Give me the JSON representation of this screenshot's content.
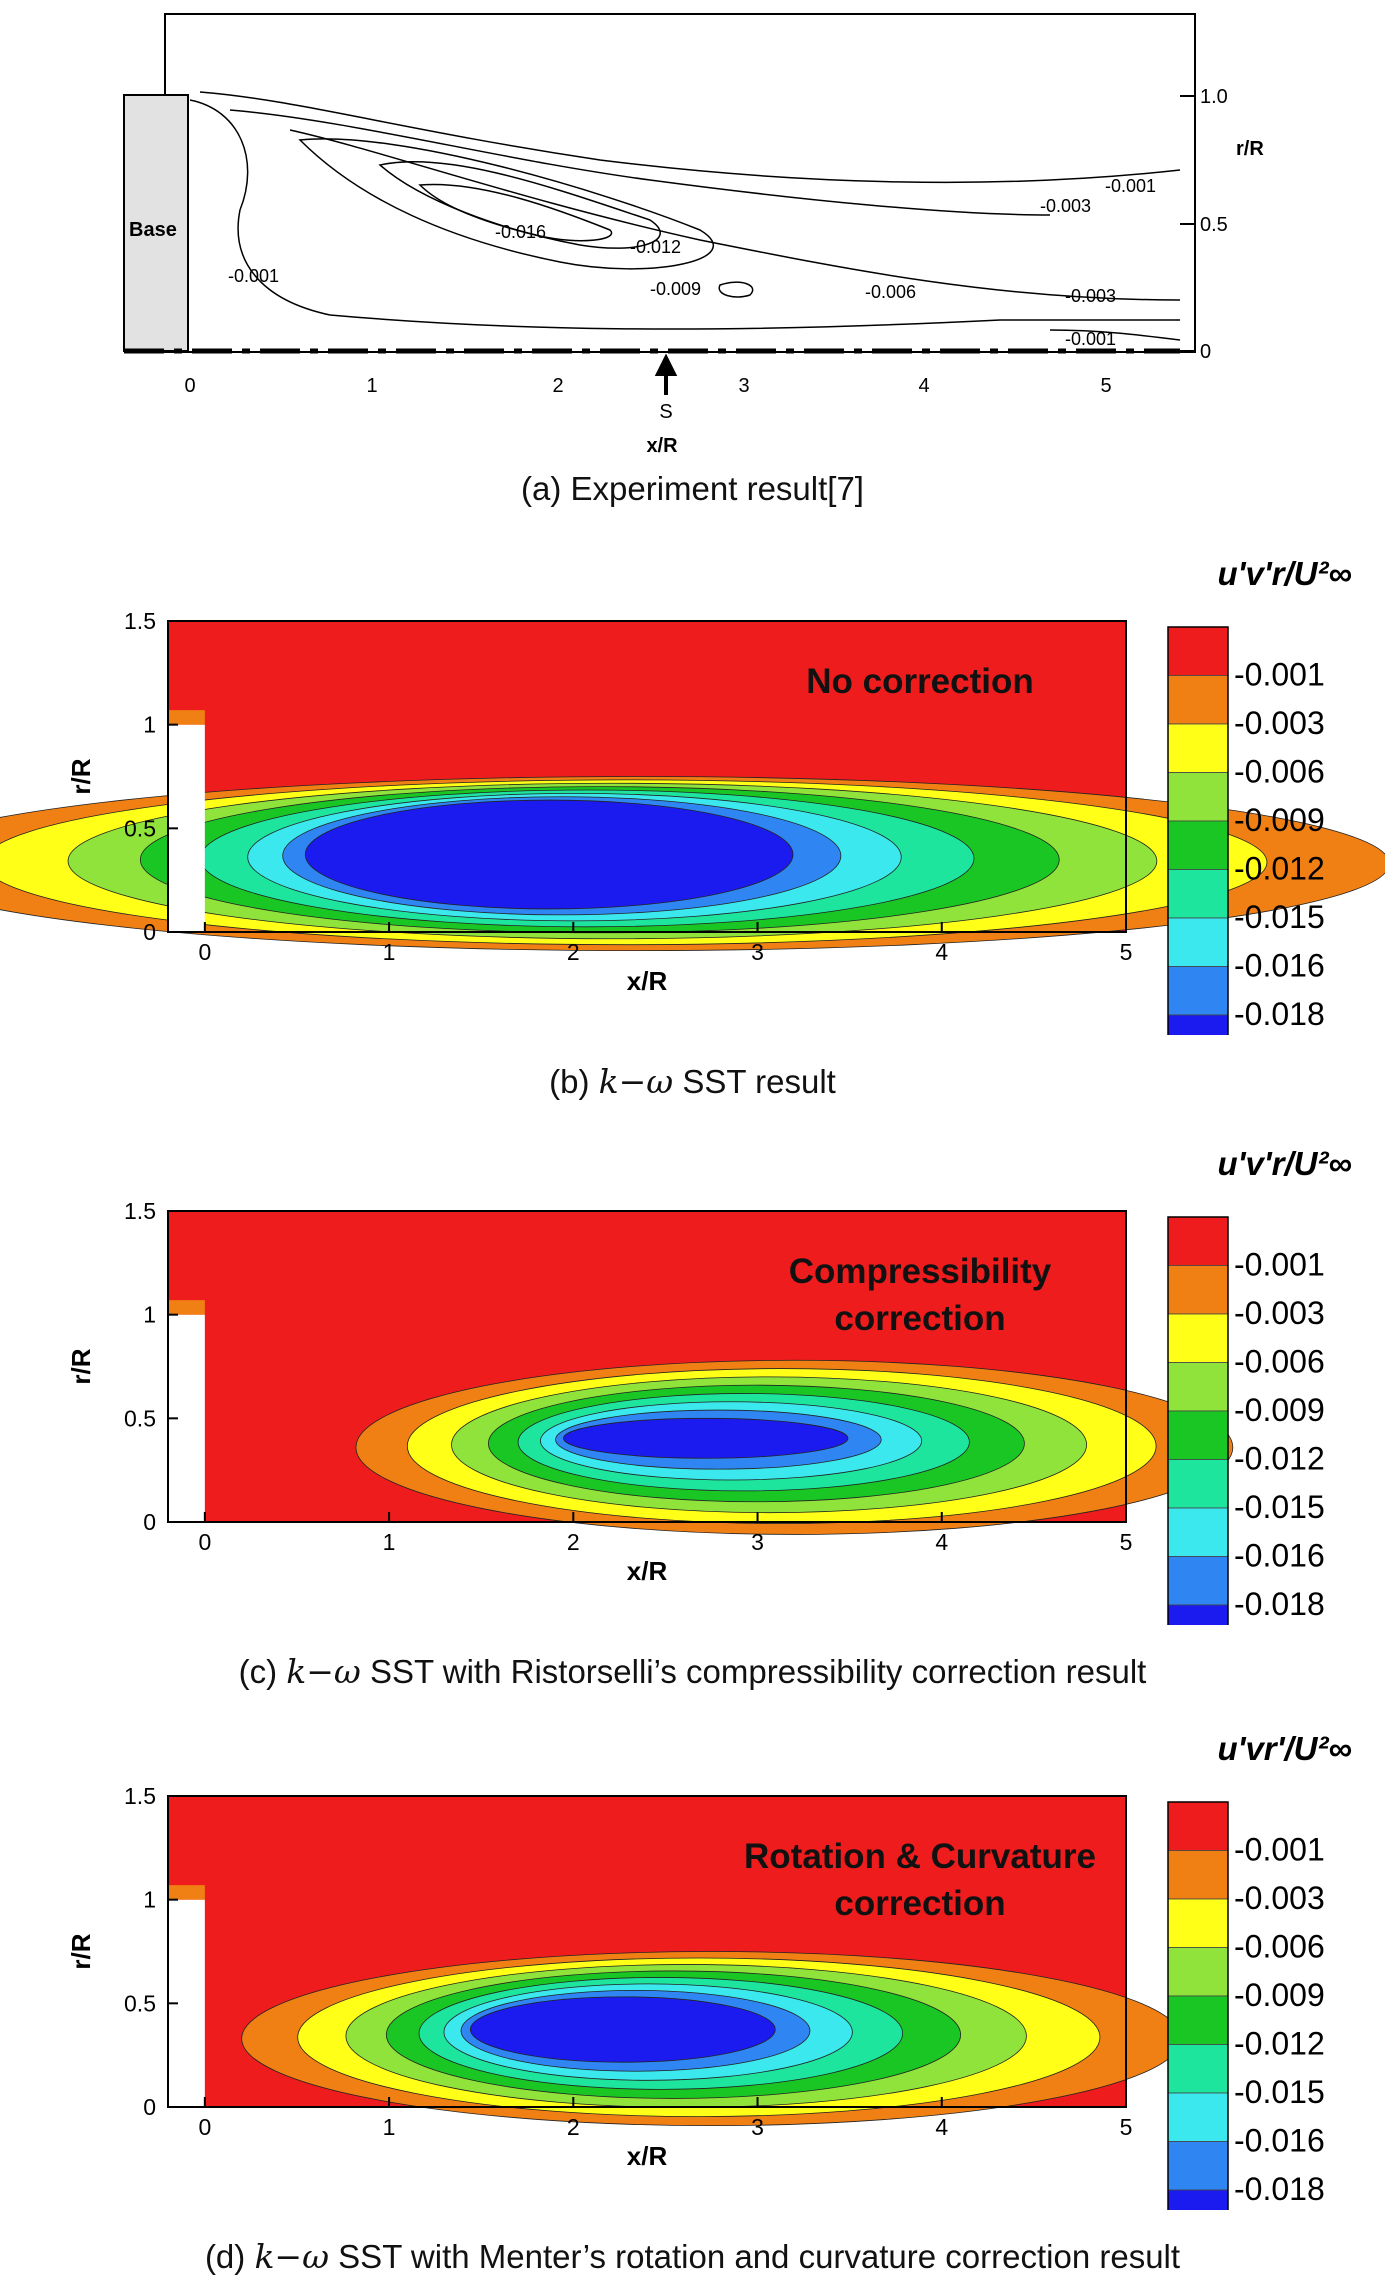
{
  "experiment": {
    "caption": "(a) Experiment result[7]",
    "base_label": "Base",
    "xlabel": "x/R",
    "ylabel": "r/R",
    "x_ticks": [
      "0",
      "1",
      "2",
      "3",
      "4",
      "5"
    ],
    "y_ticks": [
      "1.0",
      "0.5",
      "0"
    ],
    "s_marker": "S",
    "contour_labels": [
      "-0.001",
      "-0.003",
      "-0.016",
      "-0.012",
      "-0.009",
      "-0.006",
      "-0.001",
      "-0.003",
      "-0.001"
    ]
  },
  "simulation_panels": [
    {
      "caption_prefix": "(b) ",
      "caption_math": "k−ω",
      "caption_suffix": " SST result",
      "title_lines": [
        "No correction"
      ],
      "legend_title": "u'v'r/U²∞",
      "core": {
        "cx": 1.8,
        "cy": 0.38,
        "rx": 1.2,
        "ry": 0.24
      }
    },
    {
      "caption_prefix": "(c) ",
      "caption_math": "k−ω",
      "caption_suffix": " SST with Ristorselli’s compressibility correction result",
      "title_lines": [
        "Compressibility",
        "correction"
      ],
      "legend_title": "u'v'r/U²∞",
      "core": {
        "cx": 2.65,
        "cy": 0.41,
        "rx": 0.7,
        "ry": 0.05
      }
    },
    {
      "caption_prefix": "(d) ",
      "caption_math": "k−ω",
      "caption_suffix": " SST with Menter’s rotation and curvature correction result",
      "title_lines": [
        "Rotation & Curvature",
        "correction"
      ],
      "legend_title": "u'vr'/U²∞",
      "core": {
        "cx": 2.2,
        "cy": 0.38,
        "rx": 0.75,
        "ry": 0.12
      }
    }
  ],
  "chart_data": {
    "type": "heatmap",
    "quantity": "u'v'r / U∞²",
    "xlabel": "x/R",
    "ylabel": "r/R",
    "xlim": [
      -0.2,
      5.0
    ],
    "ylim": [
      0,
      1.5
    ],
    "x_ticks": [
      0,
      1,
      2,
      3,
      4,
      5
    ],
    "y_ticks": [
      0,
      0.5,
      1,
      1.5
    ],
    "contour_levels": [
      -0.001,
      -0.003,
      -0.006,
      -0.009,
      -0.012,
      -0.015,
      -0.016,
      -0.018
    ],
    "legend_labels": [
      "-0.001",
      "-0.003",
      "-0.006",
      "-0.009",
      "-0.012",
      "-0.015",
      "-0.016",
      "-0.018"
    ],
    "level_colors": [
      "#ee1c1c",
      "#f07f14",
      "#ffff17",
      "#8fe33a",
      "#19c623",
      "#1ee59e",
      "#3be8ee",
      "#2f86f2",
      "#1b1bf0"
    ]
  }
}
